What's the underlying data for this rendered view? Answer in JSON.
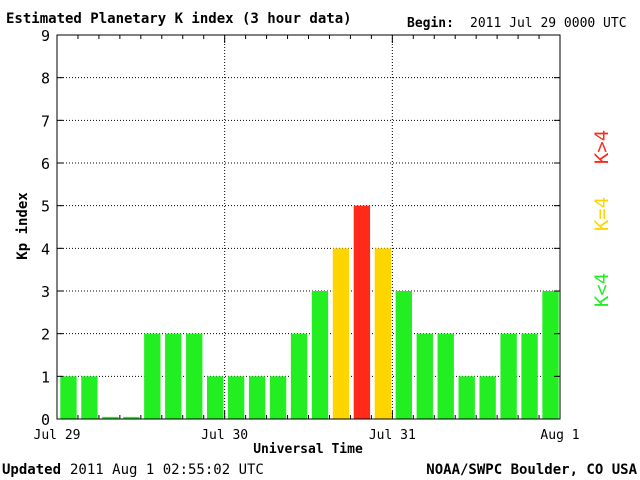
{
  "header": {
    "title": "Estimated Planetary K index (3 hour data)",
    "begin_label": "Begin:",
    "begin_value": "2011 Jul 29 0000 UTC"
  },
  "footer": {
    "updated_label": "Updated",
    "updated_value": "2011 Aug  1 02:55:02 UTC",
    "source": "NOAA/SWPC Boulder, CO USA"
  },
  "legend": {
    "items": [
      {
        "label": "K<4",
        "color": "#22ee22"
      },
      {
        "label": "K=4",
        "color": "#ffd500"
      },
      {
        "label": "K>4",
        "color": "#ff2a1a"
      }
    ],
    "placement": "right"
  },
  "colors": {
    "below": "#22ee22",
    "equal": "#ffd500",
    "above": "#ff2a1a",
    "grid": "#000000"
  },
  "chart_data": {
    "type": "bar",
    "title": "Estimated Planetary K index (3 hour data)",
    "xlabel": "Universal Time",
    "ylabel": "Kp index",
    "ylim": [
      0,
      9
    ],
    "yticks": [
      0,
      1,
      2,
      3,
      4,
      5,
      6,
      7,
      8,
      9
    ],
    "x_day_labels": [
      "Jul 29",
      "Jul 30",
      "Jul 31",
      "Aug 1"
    ],
    "bars_per_day": 8,
    "values": [
      1,
      1,
      0.05,
      0.05,
      2,
      2,
      2,
      1,
      1,
      1,
      1,
      2,
      3,
      4,
      5,
      4,
      3,
      2,
      2,
      1,
      1,
      2,
      2,
      3
    ],
    "grid": true
  }
}
